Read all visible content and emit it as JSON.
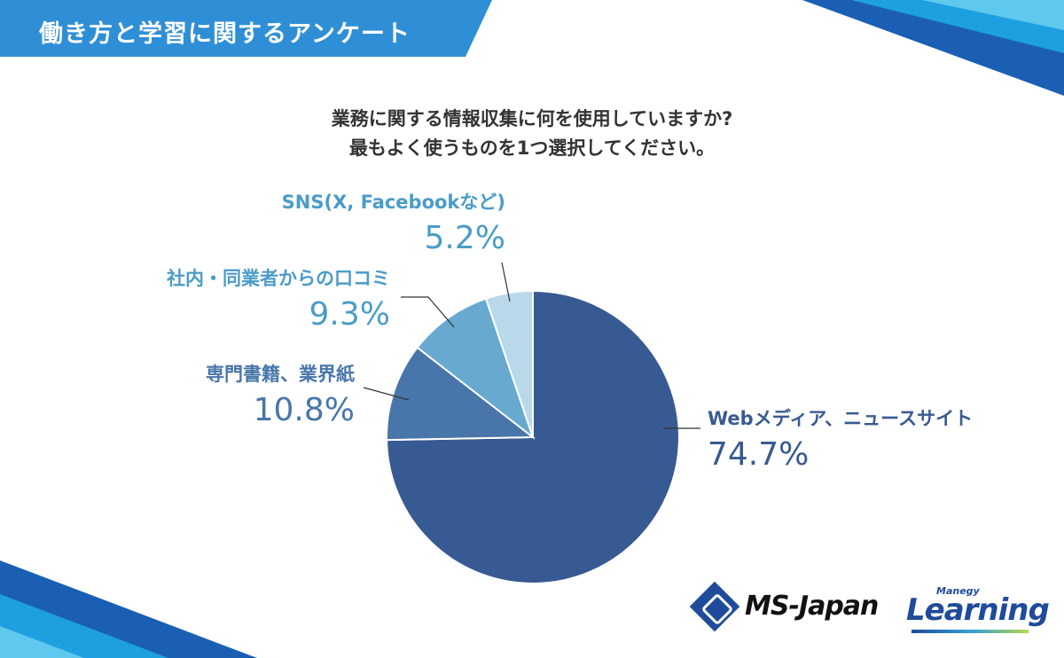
{
  "header": {
    "title": "働き方と学習に関するアンケート"
  },
  "question": {
    "line1": "業務に関する情報収集に何を使用していますか?",
    "line2": "最もよく使うものを1つ選択してください。"
  },
  "colors": {
    "header": "#2f8fd6",
    "web": "#385a92",
    "book": "#4876aa",
    "word": "#67a9cf",
    "sns": "#b9d9ea"
  },
  "chart_data": {
    "type": "pie",
    "title": "",
    "slices": [
      {
        "label": "Webメディア、ニュースサイト",
        "value": 74.7,
        "display": "74.7%"
      },
      {
        "label": "専門書籍、業界紙",
        "value": 10.8,
        "display": "10.8%"
      },
      {
        "label": "社内・同業者からの口コミ",
        "value": 9.3,
        "display": "9.3%"
      },
      {
        "label": "SNS(X, Facebookなど)",
        "value": 5.2,
        "display": "5.2%"
      }
    ]
  },
  "logos": {
    "ms_japan": "MS-Japan",
    "manegy_small": "Manegy",
    "manegy_word": "Learning"
  }
}
